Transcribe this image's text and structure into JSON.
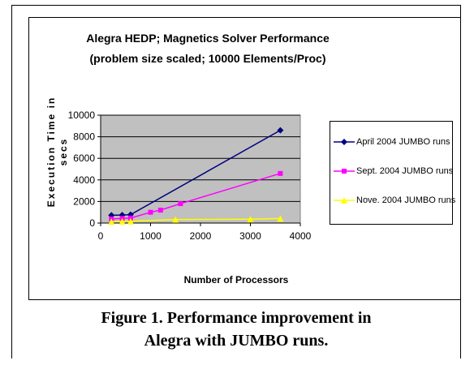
{
  "chart_data": {
    "type": "line",
    "title_line1": "Alegra HEDP; Magnetics Solver Performance",
    "title_line2": "(problem size scaled; 10000 Elements/Proc)",
    "ylabel_line1": "Execution Time in",
    "ylabel_line2": "secs",
    "xlabel": "Number of Processors",
    "xlim": [
      0,
      4000
    ],
    "ylim": [
      0,
      10000
    ],
    "xticks": [
      "0",
      "1000",
      "2000",
      "3000",
      "4000"
    ],
    "yticks": [
      "0",
      "2000",
      "4000",
      "6000",
      "8000",
      "10000"
    ],
    "grid": true,
    "legend_position": "right",
    "plot_background": "#c0c0c0",
    "series": [
      {
        "name": "April 2004 JUMBO runs",
        "color": "#000080",
        "marker": "diamond",
        "x": [
          216,
          432,
          600,
          3600
        ],
        "y": [
          720,
          740,
          780,
          8600
        ]
      },
      {
        "name": "Sept. 2004 JUMBO runs",
        "color": "#ff00ff",
        "marker": "square",
        "x": [
          216,
          432,
          600,
          1000,
          1200,
          1600,
          3600
        ],
        "y": [
          380,
          430,
          460,
          1000,
          1200,
          1800,
          4600
        ]
      },
      {
        "name": "Nove. 2004 JUMBO runs",
        "color": "#ffff00",
        "marker": "triangle",
        "x": [
          216,
          432,
          600,
          1500,
          3000,
          3600
        ],
        "y": [
          130,
          150,
          170,
          330,
          360,
          420
        ]
      }
    ]
  },
  "caption": {
    "line1": "Figure 1. Performance improvement in",
    "line2": "Alegra with JUMBO runs."
  }
}
